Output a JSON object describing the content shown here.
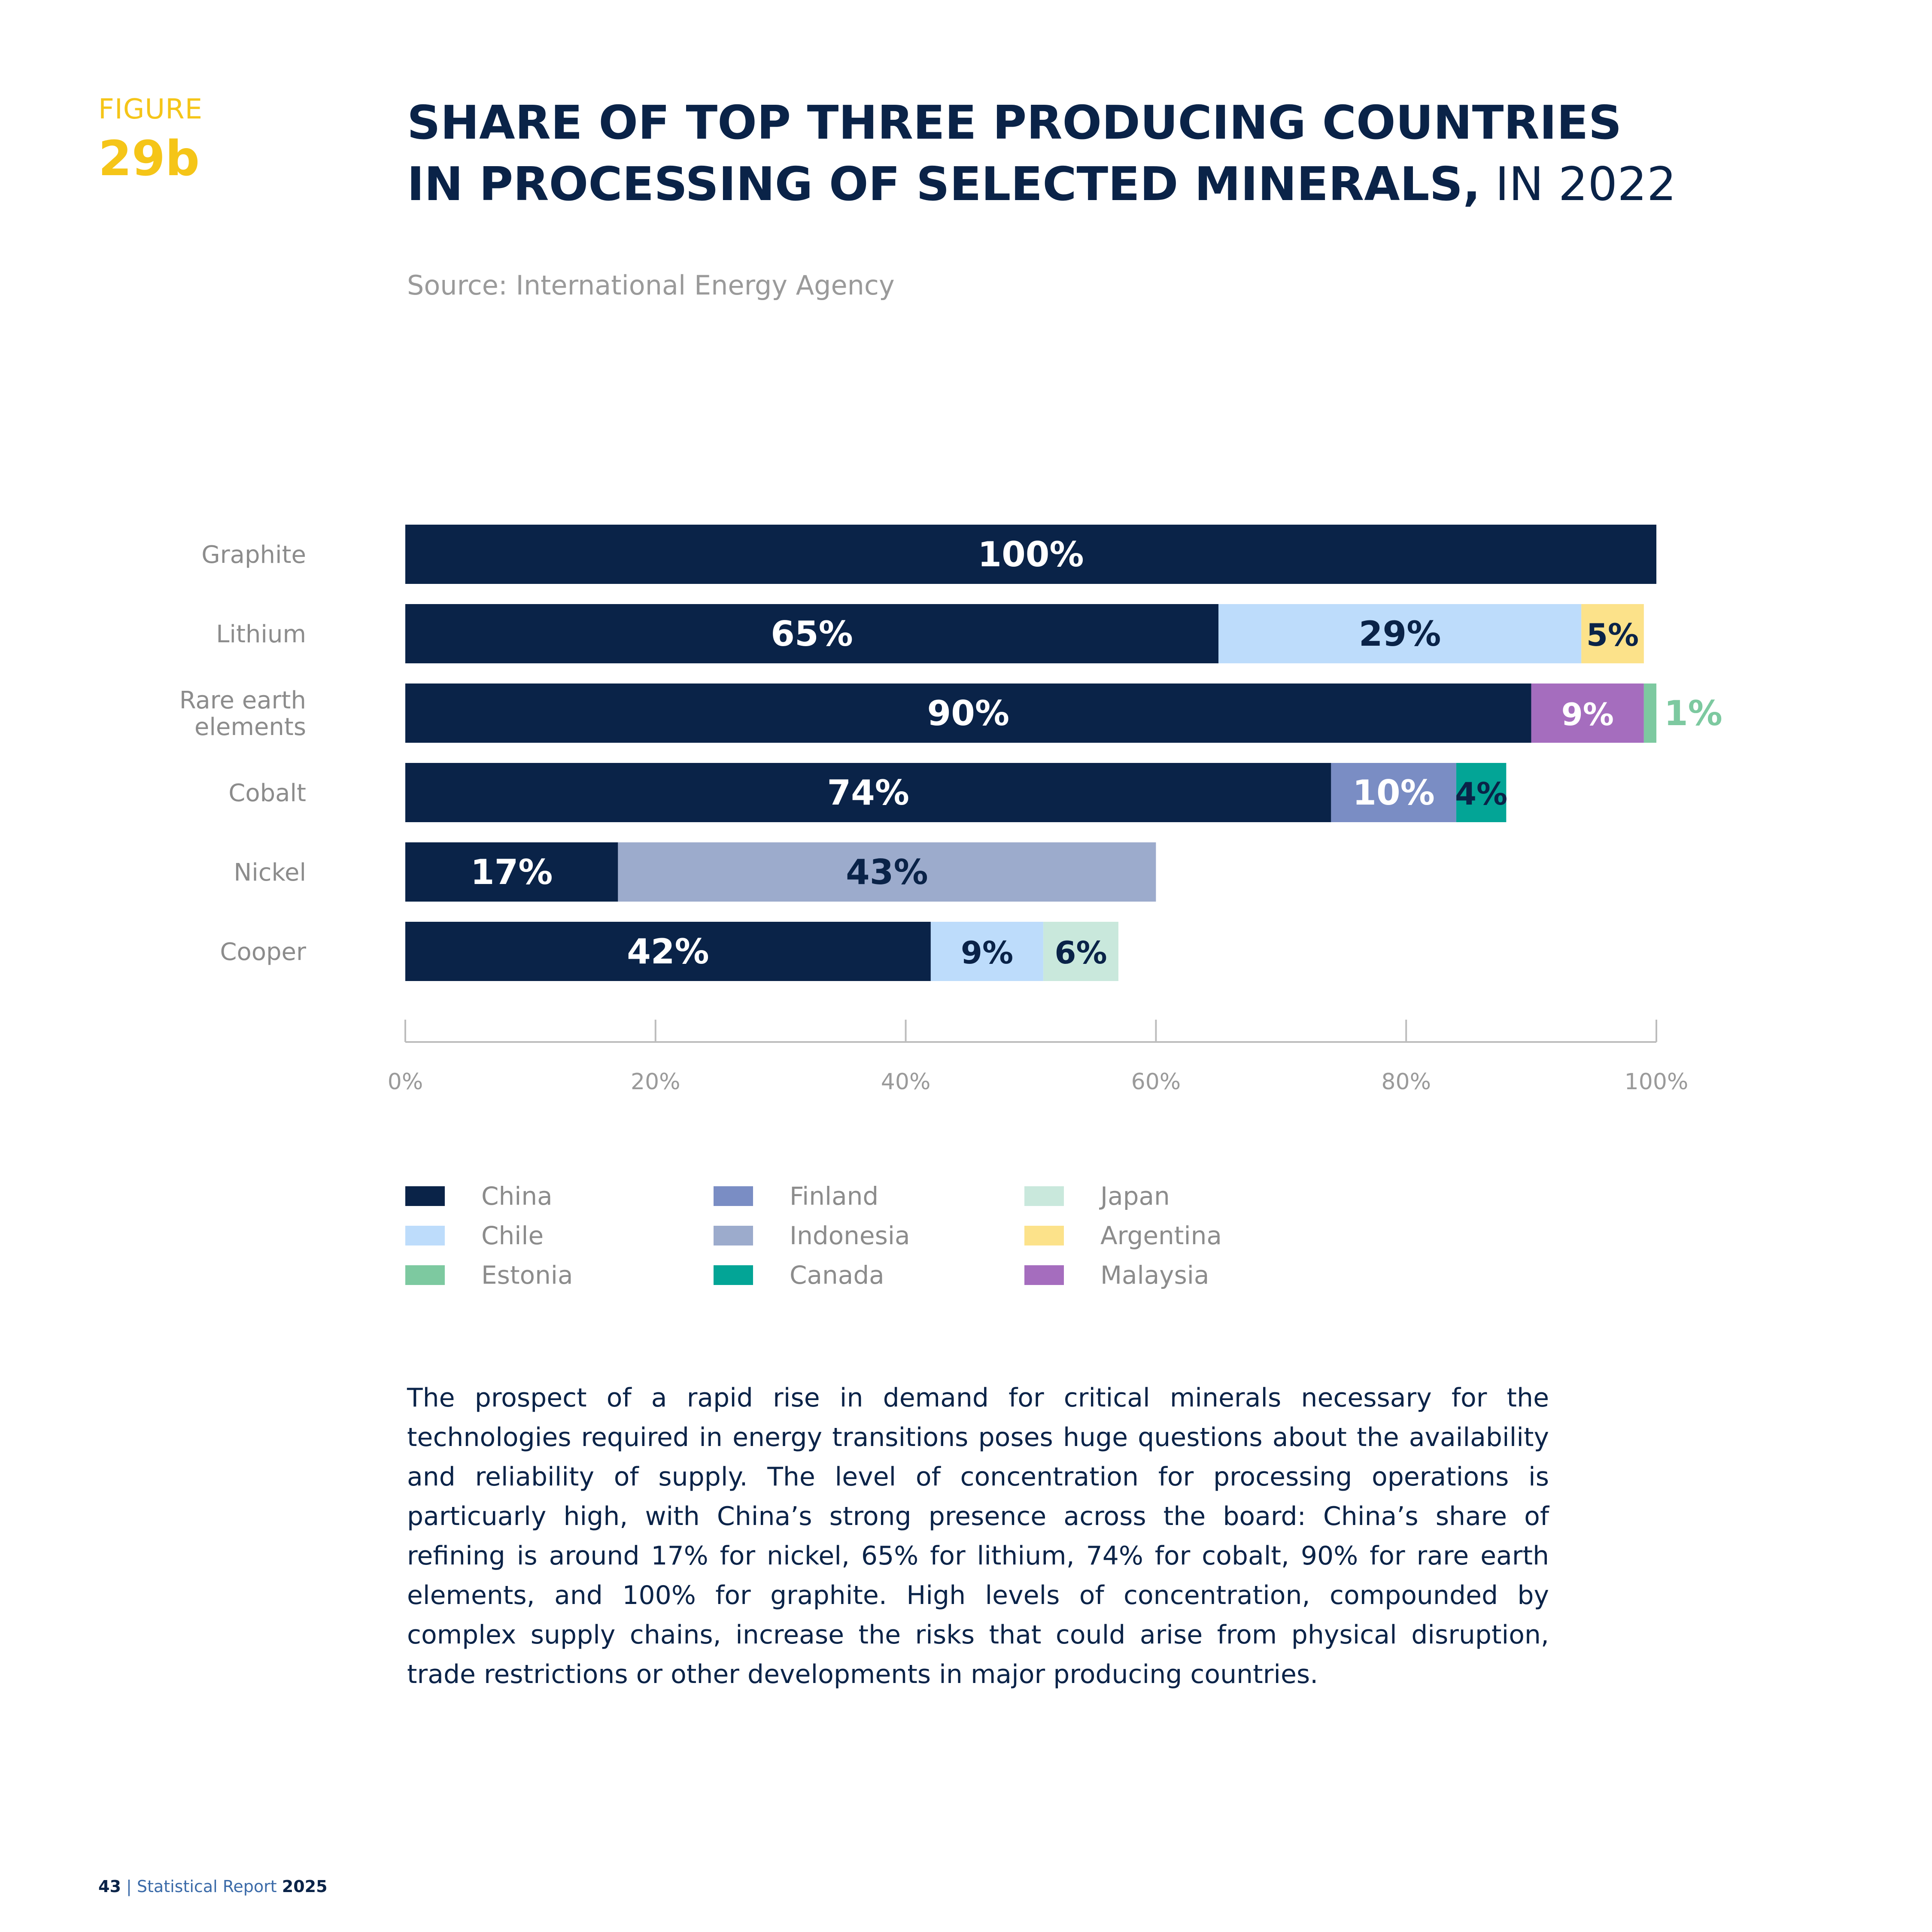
{
  "figure": {
    "label": "FIGURE",
    "number": "29b"
  },
  "title": {
    "line1": "SHARE OF TOP THREE PRODUCING COUNTRIES",
    "line2_bold": "IN PROCESSING OF SELECTED MINERALS,",
    "line2_light": " IN 2022"
  },
  "source": "Source: International Energy Agency",
  "colors": {
    "China": "#0A2348",
    "Chile": "#BDDCFB",
    "Estonia": "#7DC9A0",
    "Finland": "#7A8DC4",
    "Indonesia": "#9CABCC",
    "Canada": "#03A596",
    "Japan": "#C9E8DC",
    "Argentina": "#FCE28A",
    "Malaysia": "#A56DBE"
  },
  "chart_data": {
    "type": "bar",
    "orientation": "horizontal",
    "stacked": true,
    "categories": [
      "Graphite",
      "Lithium",
      "Rare earth elements",
      "Cobalt",
      "Nickel",
      "Cooper"
    ],
    "category_lines": [
      [
        "Graphite"
      ],
      [
        "Lithium"
      ],
      [
        "Rare earth",
        "elements"
      ],
      [
        "Cobalt"
      ],
      [
        "Nickel"
      ],
      [
        "Cooper"
      ]
    ],
    "bars": [
      {
        "segments": [
          {
            "country": "China",
            "value": 100,
            "label": "100%"
          }
        ]
      },
      {
        "segments": [
          {
            "country": "China",
            "value": 65,
            "label": "65%"
          },
          {
            "country": "Chile",
            "value": 29,
            "label": "29%"
          },
          {
            "country": "Argentina",
            "value": 5,
            "label": "5%"
          }
        ]
      },
      {
        "segments": [
          {
            "country": "China",
            "value": 90,
            "label": "90%"
          },
          {
            "country": "Malaysia",
            "value": 9,
            "label": "9%"
          },
          {
            "country": "Estonia",
            "value": 1,
            "label": "1%"
          }
        ]
      },
      {
        "segments": [
          {
            "country": "China",
            "value": 74,
            "label": "74%"
          },
          {
            "country": "Finland",
            "value": 10,
            "label": "10%"
          },
          {
            "country": "Canada",
            "value": 4,
            "label": "4%"
          }
        ]
      },
      {
        "segments": [
          {
            "country": "China",
            "value": 17,
            "label": "17%"
          },
          {
            "country": "Indonesia",
            "value": 43,
            "label": "43%"
          }
        ]
      },
      {
        "segments": [
          {
            "country": "China",
            "value": 42,
            "label": "42%"
          },
          {
            "country": "Chile",
            "value": 9,
            "label": "9%"
          },
          {
            "country": "Japan",
            "value": 6,
            "label": "6%"
          }
        ]
      }
    ],
    "x_ticks": [
      "0%",
      "20%",
      "40%",
      "60%",
      "80%",
      "100%"
    ],
    "xlim": [
      0,
      100
    ],
    "legend": {
      "position": "bottom",
      "columns": [
        [
          "China",
          "Chile",
          "Estonia"
        ],
        [
          "Finland",
          "Indonesia",
          "Canada"
        ],
        [
          "Japan",
          "Argentina",
          "Malaysia"
        ]
      ]
    }
  },
  "body_text": "The prospect of a rapid rise in demand for critical minerals necessary for the technologies required in energy transitions poses huge questions about the availability and reliability of supply. The level of concentration for processing operations is particuarly high, with China’s strong presence across the board: China’s share of refining is around 17% for nickel, 65% for lithium, 74% for cobalt, 90% for rare earth elements, and 100% for graphite. High levels of concentration, compounded by complex supply chains, increase the risks that could arise from physical disruption, trade restrictions or other developments in major producing countries.",
  "footer": {
    "page": "43",
    "separator": "|",
    "report": "Statistical Report",
    "year": "2025"
  }
}
